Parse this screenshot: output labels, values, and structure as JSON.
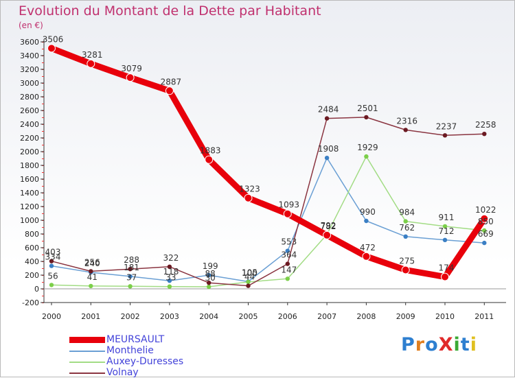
{
  "chart_data": {
    "type": "line",
    "title": "Evolution du Montant de la Dette par Habitant",
    "unit_label": "(en €)",
    "x": [
      "2000",
      "2001",
      "2002",
      "2003",
      "2004",
      "2005",
      "2006",
      "2007",
      "2008",
      "2009",
      "2010",
      "2011"
    ],
    "ylim": [
      -200,
      3600
    ],
    "y_ticks": [
      -200,
      0,
      200,
      400,
      600,
      800,
      1000,
      1200,
      1400,
      1600,
      1800,
      2000,
      2200,
      2400,
      2600,
      2800,
      3000,
      3200,
      3400,
      3600
    ],
    "grid": false,
    "legend_position": "bottom-left",
    "series": [
      {
        "name": "MEURSAULT",
        "color": "#e8000b",
        "marker": "#e8000b",
        "emphasis": true,
        "values": [
          3506,
          3281,
          3079,
          2887,
          1883,
          1323,
          1093,
          782,
          472,
          275,
          174,
          1022
        ]
      },
      {
        "name": "Monthelie",
        "color": "#6a9fd4",
        "marker": "#3b7fc4",
        "emphasis": false,
        "values": [
          334,
          240,
          181,
          118,
          199,
          105,
          553,
          1908,
          990,
          762,
          712,
          669
        ]
      },
      {
        "name": "Auxey-Duresses",
        "color": "#a2dc84",
        "marker": "#7ccf4a",
        "emphasis": false,
        "values": [
          56,
          41,
          37,
          33,
          30,
          100,
          147,
          792,
          1929,
          984,
          911,
          850
        ]
      },
      {
        "name": "Volnay",
        "color": "#8a3440",
        "marker": "#6b1a22",
        "emphasis": false,
        "values": [
          403,
          256,
          288,
          322,
          88,
          44,
          364,
          2484,
          2501,
          2316,
          2237,
          2258
        ]
      }
    ]
  },
  "brand": {
    "text": "ProXiti",
    "letters": [
      {
        "ch": "P",
        "color": "#2e7fd0"
      },
      {
        "ch": "r",
        "color": "#e07f20"
      },
      {
        "ch": "o",
        "color": "#2e7fd0"
      },
      {
        "ch": "X",
        "color": "#e02a2a"
      },
      {
        "ch": "i",
        "color": "#3aaa35"
      },
      {
        "ch": "t",
        "color": "#2e7fd0"
      },
      {
        "ch": "i",
        "color": "#e0c020"
      }
    ]
  }
}
